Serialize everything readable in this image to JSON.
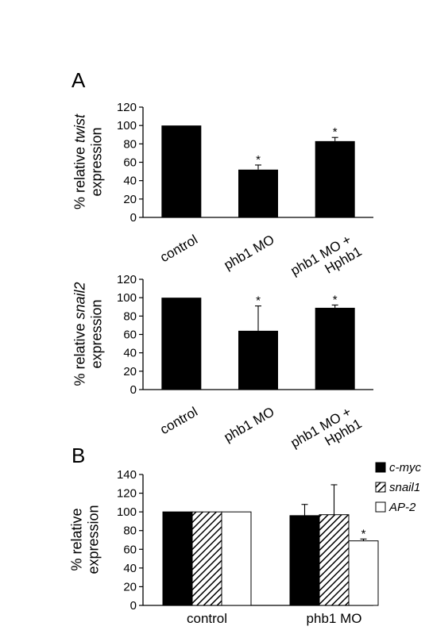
{
  "panels": {
    "a": "A",
    "b": "B"
  },
  "chart_data": [
    {
      "type": "bar",
      "panel": "A",
      "ylabel_prefix": "% relative ",
      "ylabel_gene": "twist",
      "ylabel_line2": "expression",
      "categories": [
        [
          "control"
        ],
        [
          "phb1 MO"
        ],
        [
          "phb1 MO +",
          "Hphb1"
        ]
      ],
      "values": [
        100,
        52,
        83
      ],
      "errors": [
        0,
        5,
        4
      ],
      "significance": [
        "",
        "*",
        "*"
      ],
      "ylim": [
        0,
        120
      ],
      "yticks": [
        0,
        20,
        40,
        60,
        80,
        100,
        120
      ],
      "bar_color": "#000000"
    },
    {
      "type": "bar",
      "panel": "A",
      "ylabel_prefix": "% relative ",
      "ylabel_gene": "snail2",
      "ylabel_line2": "expression",
      "categories": [
        [
          "control"
        ],
        [
          "phb1 MO"
        ],
        [
          "phb1 MO +",
          "Hphb1"
        ]
      ],
      "values": [
        100,
        64,
        89
      ],
      "errors": [
        0,
        27,
        3
      ],
      "significance": [
        "",
        "*",
        "*"
      ],
      "ylim": [
        0,
        120
      ],
      "yticks": [
        0,
        20,
        40,
        60,
        80,
        100,
        120
      ],
      "bar_color": "#000000"
    },
    {
      "type": "bar",
      "panel": "B",
      "ylabel_line1": "% relative",
      "ylabel_line2": "expression",
      "categories": [
        "control",
        "phb1 MO"
      ],
      "series": [
        {
          "name": "c-myc",
          "values": [
            100,
            96
          ],
          "errors": [
            0,
            12
          ],
          "significance": [
            "",
            ""
          ],
          "fill": "solid"
        },
        {
          "name": "snail1",
          "values": [
            100,
            97
          ],
          "errors": [
            0,
            32
          ],
          "significance": [
            "",
            ""
          ],
          "fill": "hatched"
        },
        {
          "name": "AP-2",
          "values": [
            100,
            69
          ],
          "errors": [
            0,
            2
          ],
          "significance": [
            "",
            "*"
          ],
          "fill": "open"
        }
      ],
      "ylim": [
        0,
        140
      ],
      "yticks": [
        0,
        20,
        40,
        60,
        80,
        100,
        120,
        140
      ],
      "legend_position": "top-right"
    }
  ]
}
